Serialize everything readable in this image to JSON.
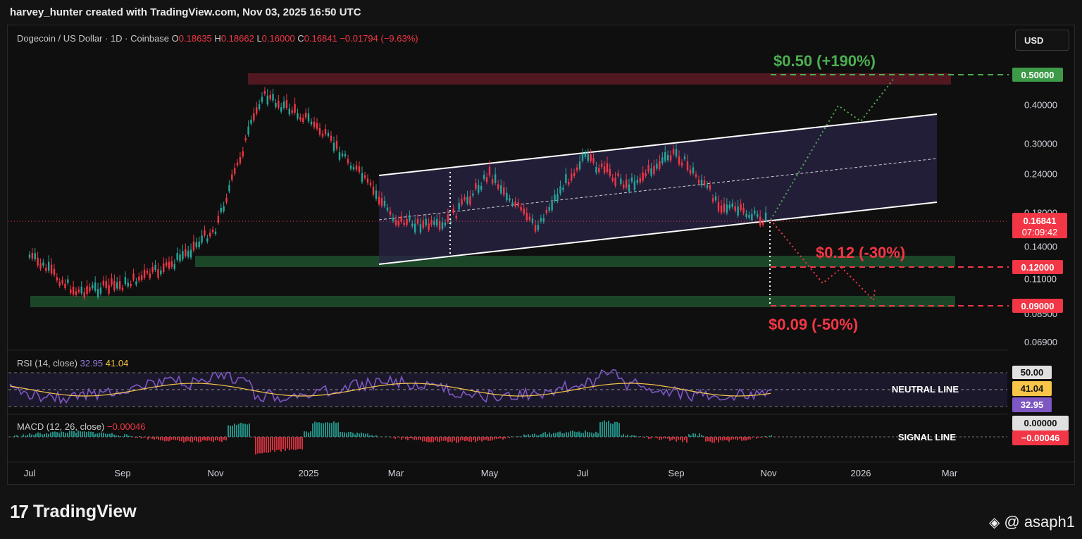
{
  "header": {
    "text": "harvey_hunter created with TradingView.com, Nov 03, 2025 16:50 UTC"
  },
  "legend": {
    "symbol": "Dogecoin / US Dollar · 1D · Coinbase",
    "o_label": "O",
    "o": "0.18635",
    "h_label": "H",
    "h": "0.18662",
    "l_label": "L",
    "l": "0.16000",
    "c_label": "C",
    "c": "0.16841",
    "change": "−0.01794 (−9.63%)"
  },
  "currency": "USD",
  "annotations": {
    "target_up": "$0.50 (+190%)",
    "target_mid": "$0.12 (-30%)",
    "target_down": "$0.09 (-50%)",
    "neutral_line": "NEUTRAL LINE",
    "signal_line": "SIGNAL LINE"
  },
  "price_badges": {
    "top": "0.50000",
    "current": "0.16841",
    "countdown": "07:09:42",
    "mid": "0.12000",
    "low": "0.09000"
  },
  "rsi": {
    "label": "RSI (14, close)",
    "value": "32.95",
    "ma": "41.04",
    "level": "50.00"
  },
  "macd": {
    "label": "MACD (12, 26, close)",
    "value": "−0.00046",
    "badge_zero": "0.00000",
    "badge_value": "−0.00046"
  },
  "footer": {
    "brand": "TradingView",
    "author": "@ asaph1"
  },
  "colors": {
    "up": "#26a69a",
    "down": "#f23645",
    "channel": "#2a2447",
    "support": "#1e4a2a",
    "resistance": "#5a1a24",
    "rsi": "#7e57c2",
    "rsi_ma": "#f7c548",
    "green_label": "#4caf50"
  },
  "chart_data": {
    "type": "line",
    "title": "Dogecoin / US Dollar · 1D · Coinbase",
    "y_scale": "log",
    "y_ticks": [
      "0.50000",
      "0.40000",
      "0.30000",
      "0.24000",
      "0.18000",
      "0.14000",
      "0.11000",
      "0.08500",
      "0.06900"
    ],
    "y_tick_values": [
      0.5,
      0.4,
      0.3,
      0.24,
      0.18,
      0.14,
      0.11,
      0.085,
      0.069
    ],
    "x_ticks": [
      "Jul",
      "Sep",
      "Nov",
      "2025",
      "Mar",
      "May",
      "Jul",
      "Sep",
      "Nov",
      "2026",
      "Mar"
    ],
    "price_path": [
      [
        "Jul 2024",
        0.13
      ],
      [
        "Aug 2024",
        0.1
      ],
      [
        "Sep 2024",
        0.105
      ],
      [
        "Oct 2024",
        0.12
      ],
      [
        "Nov 2024",
        0.16
      ],
      [
        "Dec 2024",
        0.43
      ],
      [
        "Jan 2025",
        0.36
      ],
      [
        "Feb 2025",
        0.26
      ],
      [
        "Mar 2025",
        0.17
      ],
      [
        "Apr 2025",
        0.16
      ],
      [
        "May 2025",
        0.24
      ],
      [
        "Jun 2025",
        0.16
      ],
      [
        "Jul 2025",
        0.27
      ],
      [
        "Aug 2025",
        0.22
      ],
      [
        "Sep 2025",
        0.28
      ],
      [
        "Oct 2025",
        0.19
      ],
      [
        "Nov 2025",
        0.168
      ]
    ],
    "levels": {
      "resistance": 0.5,
      "support_upper": 0.12,
      "support_lower": 0.09,
      "current": 0.16841
    },
    "rsi_current": 32.95,
    "rsi_ma": 41.04,
    "macd_current": -0.00046
  }
}
